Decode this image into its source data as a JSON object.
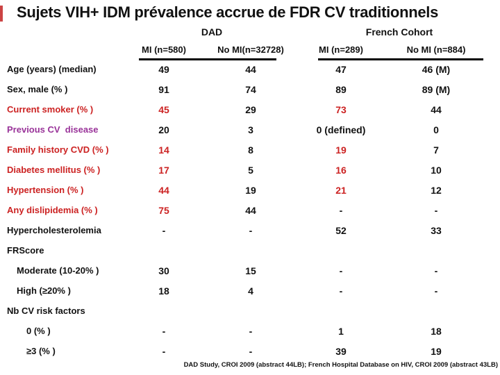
{
  "slide": {
    "title": "Sujets VIH+ IDM prévalence accrue de FDR CV traditionnels",
    "footer": "DAD Study, CROI 2009 (abstract 44LB); French Hospital Database on HIV, CROI 2009 (abstract 43LB)"
  },
  "colors": {
    "black": "#111111",
    "red": "#cc2222",
    "purple": "#993399",
    "accent": "#cc4444"
  },
  "table": {
    "groups": [
      {
        "label": "DAD"
      },
      {
        "label": "French Cohort"
      }
    ],
    "columns": [
      "MI (n=580)",
      "No MI(n=32728)",
      "MI (n=289)",
      "No MI (n=884)"
    ],
    "rows": [
      {
        "label": "Age (years) (median)",
        "label_color": "black",
        "indent": 0,
        "cells": [
          {
            "text": "49",
            "color": "black"
          },
          {
            "text": "44",
            "color": "black"
          },
          {
            "text": "47",
            "color": "black"
          },
          {
            "text": "46 (M)",
            "color": "black"
          }
        ]
      },
      {
        "label": "Sex, male (% )",
        "label_color": "black",
        "indent": 0,
        "cells": [
          {
            "text": "91",
            "color": "black"
          },
          {
            "text": "74",
            "color": "black"
          },
          {
            "text": "89",
            "color": "black"
          },
          {
            "text": "89 (M)",
            "color": "black"
          }
        ]
      },
      {
        "label": "Current smoker (% )",
        "label_color": "red",
        "indent": 0,
        "cells": [
          {
            "text": "45",
            "color": "red"
          },
          {
            "text": "29",
            "color": "black"
          },
          {
            "text": "73",
            "color": "red"
          },
          {
            "text": "44",
            "color": "black"
          }
        ]
      },
      {
        "label": "Previous CV  disease",
        "label_color": "purple",
        "indent": 0,
        "cells": [
          {
            "text": "20",
            "color": "black"
          },
          {
            "text": "3",
            "color": "black"
          },
          {
            "text": "0 (defined)",
            "color": "black"
          },
          {
            "text": "0",
            "color": "black"
          }
        ]
      },
      {
        "label": "Family history CVD (% )",
        "label_color": "red",
        "indent": 0,
        "cells": [
          {
            "text": "14",
            "color": "red"
          },
          {
            "text": "8",
            "color": "black"
          },
          {
            "text": "19",
            "color": "red"
          },
          {
            "text": "7",
            "color": "black"
          }
        ]
      },
      {
        "label": "Diabetes mellitus (% )",
        "label_color": "red",
        "indent": 0,
        "cells": [
          {
            "text": "17",
            "color": "red"
          },
          {
            "text": "5",
            "color": "black"
          },
          {
            "text": "16",
            "color": "red"
          },
          {
            "text": "10",
            "color": "black"
          }
        ]
      },
      {
        "label": "Hypertension (% )",
        "label_color": "red",
        "indent": 0,
        "cells": [
          {
            "text": "44",
            "color": "red"
          },
          {
            "text": "19",
            "color": "black"
          },
          {
            "text": "21",
            "color": "red"
          },
          {
            "text": "12",
            "color": "black"
          }
        ]
      },
      {
        "label": "Any dislipidemia (% )",
        "label_color": "red",
        "indent": 0,
        "cells": [
          {
            "text": "75",
            "color": "red"
          },
          {
            "text": "44",
            "color": "black"
          },
          {
            "text": "-",
            "color": "black"
          },
          {
            "text": "-",
            "color": "black"
          }
        ]
      },
      {
        "label": "Hypercholesterolemia",
        "label_color": "black",
        "indent": 0,
        "cells": [
          {
            "text": "-",
            "color": "black"
          },
          {
            "text": "-",
            "color": "black"
          },
          {
            "text": "52",
            "color": "black"
          },
          {
            "text": "33",
            "color": "black"
          }
        ]
      },
      {
        "label": "FRScore",
        "label_color": "black",
        "indent": 0,
        "section": true
      },
      {
        "label": "Moderate (10-20% )",
        "label_color": "black",
        "indent": 1,
        "cells": [
          {
            "text": "30",
            "color": "black"
          },
          {
            "text": "15",
            "color": "black"
          },
          {
            "text": "-",
            "color": "black"
          },
          {
            "text": "-",
            "color": "black"
          }
        ]
      },
      {
        "label": "High (≥20% )",
        "label_color": "black",
        "indent": 1,
        "cells": [
          {
            "text": "18",
            "color": "black"
          },
          {
            "text": "4",
            "color": "black"
          },
          {
            "text": "-",
            "color": "black"
          },
          {
            "text": "-",
            "color": "black"
          }
        ]
      },
      {
        "label": "Nb CV risk factors",
        "label_color": "black",
        "indent": 0,
        "section": true
      },
      {
        "label": "0 (% )",
        "label_color": "black",
        "indent": 2,
        "cells": [
          {
            "text": "-",
            "color": "black"
          },
          {
            "text": "-",
            "color": "black"
          },
          {
            "text": "1",
            "color": "black"
          },
          {
            "text": "18",
            "color": "black"
          }
        ]
      },
      {
        "label": "≥3 (% )",
        "label_color": "black",
        "indent": 2,
        "cells": [
          {
            "text": "-",
            "color": "black"
          },
          {
            "text": "-",
            "color": "black"
          },
          {
            "text": "39",
            "color": "black"
          },
          {
            "text": "19",
            "color": "black"
          }
        ]
      }
    ]
  }
}
